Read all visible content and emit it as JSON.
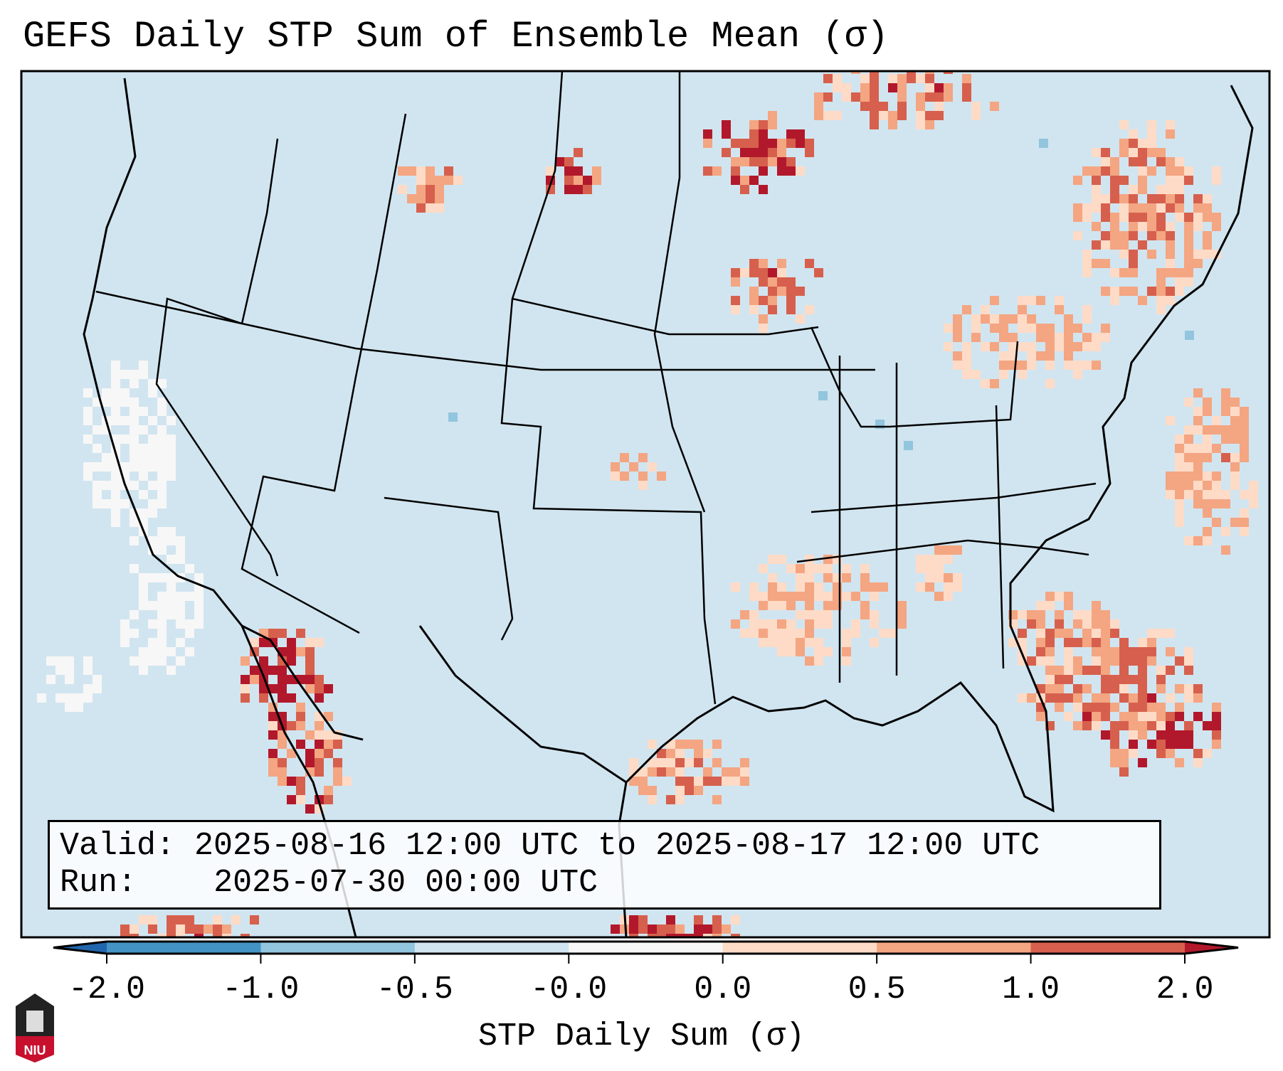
{
  "title": "GEFS Daily STP Sum of Ensemble Mean (σ)",
  "info_box": {
    "valid_label": "Valid:",
    "valid_value": "2025-08-16 12:00 UTC to 2025-08-17 12:00 UTC",
    "run_label": "Run:",
    "run_value": "2025-07-30 00:00 UTC"
  },
  "logo_text": "NIU",
  "chart_data": {
    "type": "heatmap",
    "title": "GEFS Daily STP Sum of Ensemble Mean (σ)",
    "colorbar": {
      "label": "STP Daily Sum (σ)",
      "ticks": [
        "-2.0",
        "-1.0",
        "-0.5",
        "-0.0",
        "0.0",
        "0.5",
        "1.0",
        "2.0"
      ],
      "bin_colors": [
        "#4393c3",
        "#92c5de",
        "#d1e5f0",
        "#f7f7f7",
        "#fddbc7",
        "#f4a582",
        "#d6604d"
      ],
      "under_color": "#2166ac",
      "over_color": "#b2182b",
      "extend": "both"
    },
    "region": "Continental United States",
    "background_color": "#d1e5f0"
  }
}
